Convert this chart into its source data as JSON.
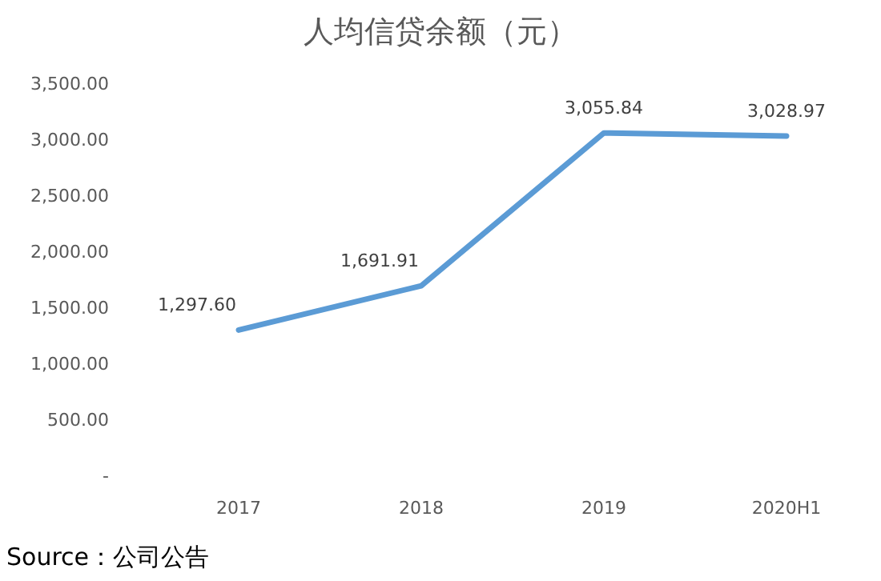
{
  "chart_data": {
    "type": "line",
    "title": "人均信贷余额（元）",
    "categories": [
      "2017",
      "2018",
      "2019",
      "2020H1"
    ],
    "series": [
      {
        "color": "#5b9bd5",
        "values": [
          1297.6,
          1691.91,
          3055.84,
          3028.97
        ],
        "value_labels": [
          "1,297.60",
          "1,691.91",
          "3,055.84",
          "3,028.97"
        ]
      }
    ],
    "ylim": [
      0,
      3500
    ],
    "yticks": [
      {
        "value": 0,
        "label": "-"
      },
      {
        "value": 500,
        "label": "500.00"
      },
      {
        "value": 1000,
        "label": "1,000.00"
      },
      {
        "value": 1500,
        "label": "1,500.00"
      },
      {
        "value": 2000,
        "label": "2,000.00"
      },
      {
        "value": 2500,
        "label": "2,500.00"
      },
      {
        "value": 3000,
        "label": "3,000.00"
      },
      {
        "value": 3500,
        "label": "3,500.00"
      }
    ],
    "marker": "none",
    "line_style": "solid",
    "annotations": [
      "Source：公司公告"
    ]
  }
}
